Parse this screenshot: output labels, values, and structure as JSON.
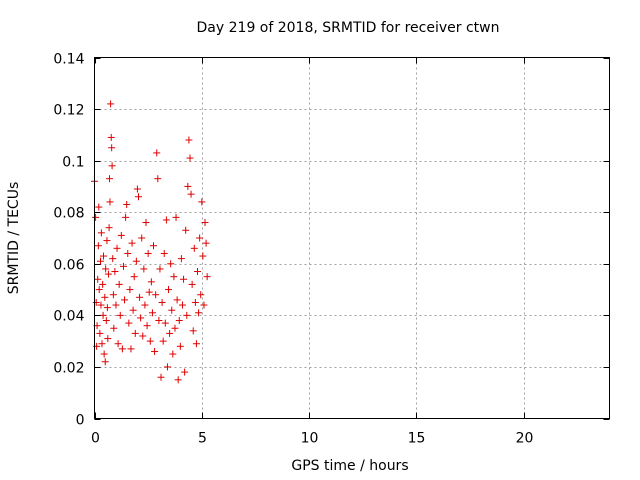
{
  "chart_data": {
    "type": "scatter",
    "title": "Day 219 of 2018, SRMTID for receiver ctwn",
    "xlabel": "GPS time / hours",
    "ylabel": "SRMTID / TECUs",
    "xlim": [
      0,
      24
    ],
    "ylim": [
      0,
      0.14
    ],
    "x_ticks": [
      "0",
      "5",
      "10",
      "15",
      "20"
    ],
    "y_ticks": [
      "0",
      "0.02",
      "0.04",
      "0.06",
      "0.08",
      "0.1",
      "0.12",
      "0.14"
    ],
    "grid": true,
    "marker": "plus",
    "color": "#e00000",
    "series": [
      {
        "points": [
          [
            0.0,
            0.092
          ],
          [
            0.05,
            0.078
          ],
          [
            0.08,
            0.045
          ],
          [
            0.1,
            0.028
          ],
          [
            0.12,
            0.036
          ],
          [
            0.15,
            0.054
          ],
          [
            0.18,
            0.067
          ],
          [
            0.2,
            0.082
          ],
          [
            0.22,
            0.05
          ],
          [
            0.25,
            0.033
          ],
          [
            0.28,
            0.061
          ],
          [
            0.3,
            0.044
          ],
          [
            0.32,
            0.072
          ],
          [
            0.35,
            0.029
          ],
          [
            0.38,
            0.052
          ],
          [
            0.4,
            0.04
          ],
          [
            0.42,
            0.063
          ],
          [
            0.45,
            0.025
          ],
          [
            0.48,
            0.047
          ],
          [
            0.5,
            0.022
          ],
          [
            0.52,
            0.058
          ],
          [
            0.55,
            0.038
          ],
          [
            0.58,
            0.069
          ],
          [
            0.6,
            0.043
          ],
          [
            0.62,
            0.031
          ],
          [
            0.65,
            0.056
          ],
          [
            0.68,
            0.074
          ],
          [
            0.7,
            0.093
          ],
          [
            0.72,
            0.084
          ],
          [
            0.75,
            0.122
          ],
          [
            0.78,
            0.109
          ],
          [
            0.8,
            0.105
          ],
          [
            0.82,
            0.098
          ],
          [
            0.85,
            0.062
          ],
          [
            0.88,
            0.048
          ],
          [
            0.9,
            0.035
          ],
          [
            0.95,
            0.057
          ],
          [
            1.0,
            0.044
          ],
          [
            1.05,
            0.066
          ],
          [
            1.1,
            0.029
          ],
          [
            1.15,
            0.052
          ],
          [
            1.2,
            0.04
          ],
          [
            1.25,
            0.071
          ],
          [
            1.3,
            0.027
          ],
          [
            1.35,
            0.059
          ],
          [
            1.4,
            0.046
          ],
          [
            1.45,
            0.078
          ],
          [
            1.5,
            0.083
          ],
          [
            1.55,
            0.064
          ],
          [
            1.6,
            0.037
          ],
          [
            1.65,
            0.05
          ],
          [
            1.7,
            0.027
          ],
          [
            1.75,
            0.068
          ],
          [
            1.8,
            0.042
          ],
          [
            1.85,
            0.055
          ],
          [
            1.9,
            0.033
          ],
          [
            1.95,
            0.061
          ],
          [
            2.0,
            0.089
          ],
          [
            2.05,
            0.086
          ],
          [
            2.1,
            0.047
          ],
          [
            2.15,
            0.039
          ],
          [
            2.2,
            0.07
          ],
          [
            2.25,
            0.032
          ],
          [
            2.3,
            0.058
          ],
          [
            2.35,
            0.044
          ],
          [
            2.4,
            0.076
          ],
          [
            2.45,
            0.036
          ],
          [
            2.5,
            0.064
          ],
          [
            2.55,
            0.049
          ],
          [
            2.6,
            0.03
          ],
          [
            2.65,
            0.053
          ],
          [
            2.7,
            0.041
          ],
          [
            2.75,
            0.067
          ],
          [
            2.8,
            0.026
          ],
          [
            2.85,
            0.048
          ],
          [
            2.9,
            0.103
          ],
          [
            2.95,
            0.093
          ],
          [
            3.0,
            0.038
          ],
          [
            3.05,
            0.058
          ],
          [
            3.1,
            0.016
          ],
          [
            3.15,
            0.045
          ],
          [
            3.2,
            0.03
          ],
          [
            3.25,
            0.064
          ],
          [
            3.3,
            0.037
          ],
          [
            3.35,
            0.077
          ],
          [
            3.4,
            0.02
          ],
          [
            3.45,
            0.05
          ],
          [
            3.5,
            0.033
          ],
          [
            3.55,
            0.06
          ],
          [
            3.6,
            0.042
          ],
          [
            3.65,
            0.025
          ],
          [
            3.7,
            0.055
          ],
          [
            3.75,
            0.035
          ],
          [
            3.8,
            0.078
          ],
          [
            3.85,
            0.046
          ],
          [
            3.9,
            0.015
          ],
          [
            3.95,
            0.038
          ],
          [
            4.0,
            0.028
          ],
          [
            4.05,
            0.062
          ],
          [
            4.1,
            0.044
          ],
          [
            4.15,
            0.054
          ],
          [
            4.2,
            0.018
          ],
          [
            4.25,
            0.073
          ],
          [
            4.3,
            0.04
          ],
          [
            4.35,
            0.09
          ],
          [
            4.4,
            0.108
          ],
          [
            4.45,
            0.101
          ],
          [
            4.5,
            0.087
          ],
          [
            4.55,
            0.052
          ],
          [
            4.6,
            0.034
          ],
          [
            4.65,
            0.066
          ],
          [
            4.7,
            0.045
          ],
          [
            4.75,
            0.029
          ],
          [
            4.8,
            0.057
          ],
          [
            4.85,
            0.041
          ],
          [
            4.9,
            0.07
          ],
          [
            4.95,
            0.048
          ],
          [
            5.0,
            0.084
          ],
          [
            5.05,
            0.063
          ],
          [
            5.1,
            0.044
          ],
          [
            5.15,
            0.076
          ],
          [
            5.2,
            0.068
          ],
          [
            5.25,
            0.055
          ]
        ]
      }
    ]
  }
}
